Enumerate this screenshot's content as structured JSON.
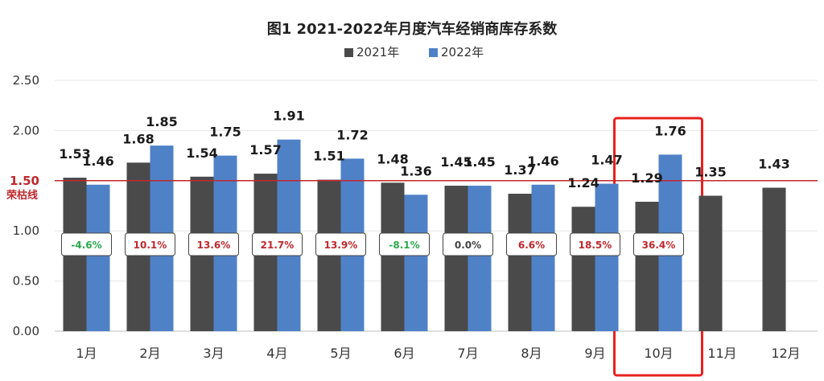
{
  "chart_data": {
    "type": "bar",
    "title": "图1  2021-2022年月度汽车经销商库存系数",
    "categories": [
      "1月",
      "2月",
      "3月",
      "4月",
      "5月",
      "6月",
      "7月",
      "8月",
      "9月",
      "10月",
      "11月",
      "12月"
    ],
    "series": [
      {
        "name": "2021年",
        "color": "#4a4a4a",
        "values": [
          1.53,
          1.68,
          1.54,
          1.57,
          1.51,
          1.48,
          1.45,
          1.37,
          1.24,
          1.29,
          1.35,
          1.43
        ]
      },
      {
        "name": "2022年",
        "color": "#4f81c7",
        "values": [
          1.46,
          1.85,
          1.75,
          1.91,
          1.72,
          1.36,
          1.45,
          1.46,
          1.47,
          1.76,
          null,
          null
        ]
      }
    ],
    "value_labels": [
      [
        "1.53",
        "1.68",
        "1.54",
        "1.57",
        "1.51",
        "1.48",
        "1.45",
        "1.37",
        "1.24",
        "1.29",
        "1.35",
        "1.43"
      ],
      [
        "1.46",
        "1.85",
        "1.75",
        "1.91",
        "1.72",
        "1.36",
        "1.45",
        "1.46",
        "1.47",
        "1.76",
        "",
        ""
      ]
    ],
    "yoy_labels": [
      "-4.6%",
      "10.1%",
      "13.6%",
      "21.7%",
      "13.9%",
      "-8.1%",
      "0.0%",
      "6.6%",
      "18.5%",
      "36.4%"
    ],
    "yoy_colors": [
      "#2ba84a",
      "#c0282d",
      "#c0282d",
      "#c0282d",
      "#c0282d",
      "#2ba84a",
      "#444444",
      "#c0282d",
      "#c0282d",
      "#c0282d"
    ],
    "ylim": [
      0,
      2.5
    ],
    "yticks": [
      "0.00",
      "0.50",
      "1.00",
      "1.50",
      "2.00",
      "2.50"
    ],
    "threshold": {
      "value": 1.5,
      "label": "荣枯线",
      "color": "#c0282d"
    },
    "highlight_category": "10月",
    "highlight_color": "#e8211d",
    "legend_position": "top-center",
    "grid": true
  }
}
